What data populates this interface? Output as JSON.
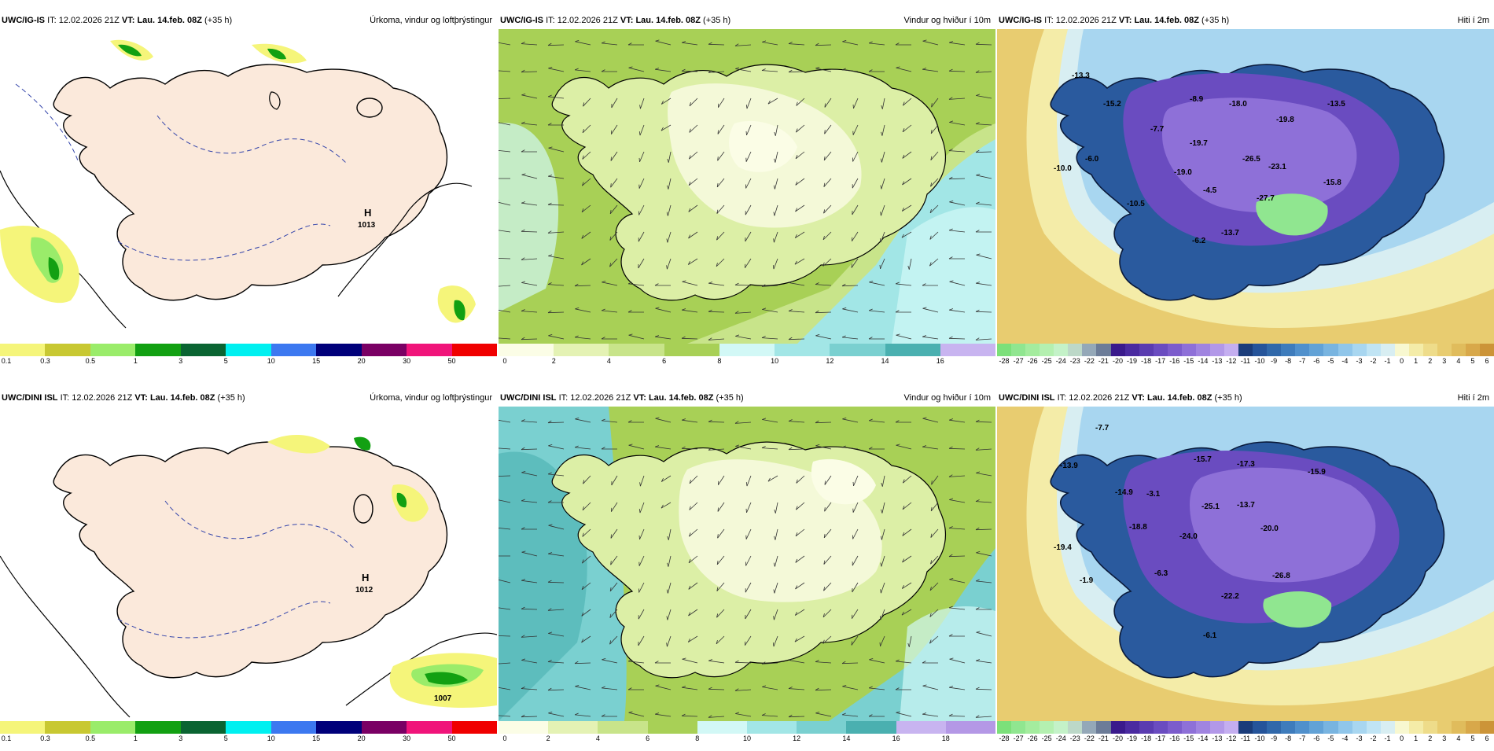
{
  "header_common": {
    "it_label": "IT:",
    "it_time": "12.02.2026 21Z",
    "vt_label": "VT:",
    "vt_time": "Lau. 14.feb. 08Z",
    "lead": "(+35 h)"
  },
  "models": [
    "UWC/IG-IS",
    "UWC/DINI ISL"
  ],
  "panel_titles": {
    "precip": "Úrkoma, vindur og loftþrýstingur",
    "wind": "Vindur og hviður í 10m",
    "temp": "Hiti í 2m"
  },
  "precip": {
    "ticks": [
      "0.1",
      "0.3",
      "0.5",
      "1",
      "3",
      "5",
      "10",
      "15",
      "20",
      "30",
      "50"
    ],
    "colors": [
      "#f5f57a",
      "#c8c832",
      "#9aec6a",
      "#12a012",
      "#0a6432",
      "#00f0f0",
      "#3c78f0",
      "#00007a",
      "#7a0064",
      "#f0147a",
      "#f00000"
    ],
    "top": {
      "pressure_high": "H",
      "pressure_value": "1013"
    },
    "bottom": {
      "pressure_high": "H",
      "pressure_value": "1012",
      "low_center": "1007"
    }
  },
  "wind": {
    "top_ticks": [
      "0",
      "2",
      "4",
      "6",
      "8",
      "10",
      "12",
      "14",
      "16"
    ],
    "top_colors": [
      "#fbfde6",
      "#e4f2b4",
      "#c8e48a",
      "#a8d056",
      "#d2f8f6",
      "#a2e6e6",
      "#7ad0d0",
      "#4ab0b0",
      "#c8b4f0"
    ],
    "bottom_ticks": [
      "0",
      "2",
      "4",
      "6",
      "8",
      "10",
      "12",
      "14",
      "16",
      "18"
    ],
    "bottom_colors": [
      "#fbfde6",
      "#e4f2b4",
      "#c8e48a",
      "#a8d056",
      "#d2f8f6",
      "#a2e6e6",
      "#7ad0d0",
      "#4ab0b0",
      "#c8b4f0",
      "#b498e6"
    ]
  },
  "temp": {
    "ticks": [
      "-28",
      "-27",
      "-26",
      "-25",
      "-24",
      "-23",
      "-22",
      "-21",
      "-20",
      "-19",
      "-18",
      "-17",
      "-16",
      "-15",
      "-14",
      "-13",
      "-12",
      "-11",
      "-10",
      "-9",
      "-8",
      "-7",
      "-6",
      "-5",
      "-4",
      "-3",
      "-2",
      "-1",
      "0",
      "1",
      "2",
      "3",
      "4",
      "5",
      "6"
    ],
    "colors": [
      "#7ce07a",
      "#90e690",
      "#a4ec9e",
      "#b4f0b0",
      "#c4f2c8",
      "#bcd8c8",
      "#94a8b8",
      "#6c7c98",
      "#3a1a8c",
      "#4a2aa0",
      "#5a3cb0",
      "#6a4cc0",
      "#7c5ccc",
      "#8e70d8",
      "#a084e0",
      "#b298e8",
      "#c4aef0",
      "#1a3c7a",
      "#25549a",
      "#3068aa",
      "#3e7cbc",
      "#5090cc",
      "#62a2d6",
      "#78b4e0",
      "#90c6ea",
      "#a8d6f0",
      "#c0e4f4",
      "#d8eef2",
      "#f8f8d0",
      "#f4eca8",
      "#eedc8a",
      "#e8cc70",
      "#e0bc5c",
      "#d8a84a",
      "#cc9438"
    ],
    "top_labels": [
      "-13.3",
      "-15.2",
      "-7.7",
      "-8.9",
      "-18.0",
      "-19.8",
      "-13.5",
      "-19.7",
      "-26.5",
      "-6.0",
      "-19.0",
      "-23.1",
      "-10.0",
      "-15.8",
      "-4.5",
      "-27.7",
      "-10.5",
      "-13.7",
      "-6.2"
    ],
    "bottom_labels": [
      "-7.7",
      "-13.9",
      "-15.7",
      "-17.3",
      "-15.9",
      "-14.9",
      "-3.1",
      "-25.1",
      "-13.7",
      "-18.8",
      "-24.0",
      "-20.0",
      "-19.4",
      "-1.9",
      "-6.3",
      "-26.8",
      "-22.2",
      "-6.1"
    ]
  }
}
